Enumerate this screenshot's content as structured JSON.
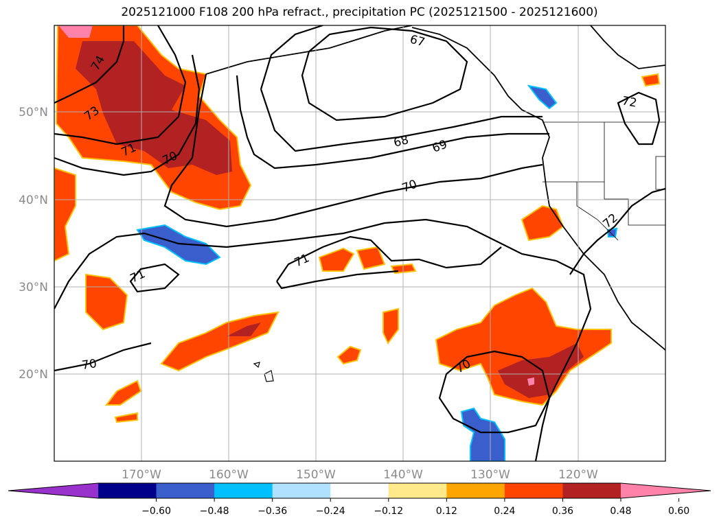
{
  "title": "2025121000 F108 200 hPa refract., precipitation PC (2025121500 - 2025121600)",
  "map": {
    "lon_ticks": [
      "170°W",
      "160°W",
      "150°W",
      "140°W",
      "130°W",
      "120°W"
    ],
    "lat_ticks": [
      "50°N",
      "40°N",
      "30°N",
      "20°N"
    ],
    "contour_labels": [
      "67",
      "68",
      "69",
      "70",
      "70",
      "70",
      "70",
      "71",
      "71",
      "71",
      "72",
      "72",
      "73",
      "74"
    ],
    "gridlines": true
  },
  "colorbar": {
    "ticks": [
      "−0.60",
      "−0.48",
      "−0.36",
      "−0.24",
      "−0.12",
      "0.12",
      "0.24",
      "0.36",
      "0.48",
      "0.60"
    ],
    "colors": [
      "#9932cc",
      "#00008b",
      "#3a5fcd",
      "#00bfff",
      "#b0e2ff",
      "#ffffff",
      "#ffe98a",
      "#ffa500",
      "#ff4500",
      "#b22222",
      "#ff82ab"
    ],
    "extend": "both"
  }
}
